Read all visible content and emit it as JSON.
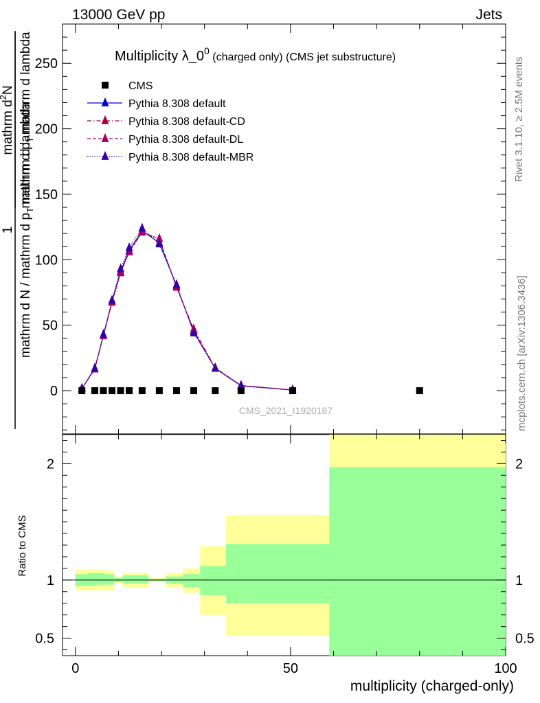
{
  "header": {
    "left": "13000 GeV pp",
    "right": "Jets"
  },
  "side_labels": {
    "rivet": "Rivet 3.1.10, ≥ 2.5M events",
    "mcplots": "mcplots.cern.ch [arXiv:1306.3436]"
  },
  "chart_data": [
    {
      "type": "line",
      "title_main": "Multiplicity λ_0",
      "title_sup": "0",
      "title_tail": " (charged only) (CMS jet substructure)",
      "ylabel": {
        "outer_num": "1",
        "outer_den": "mathrm d N / mathrm d p",
        "outer_den_sub": "T",
        "outer_den_tail": " mathrm d lambda",
        "inner_num": "mathrm d",
        "inner_num_sup": "2",
        "inner_num_tail": "N",
        "inner_den": "mathrm d p",
        "inner_den_sub": "T",
        "inner_den_tail": " mathrm d lambda"
      },
      "watermark": "CMS_2021_I1920187",
      "xlim": [
        -3,
        100
      ],
      "ylim": [
        -33,
        280
      ],
      "yticks": [
        0,
        50,
        100,
        150,
        200,
        250
      ],
      "legend_position": "top-left",
      "series": [
        {
          "name": "CMS",
          "style": "data-square",
          "color": "#000000",
          "x": [
            1.5,
            4.5,
            6.5,
            8.5,
            10.5,
            12.5,
            15.5,
            19.5,
            23.5,
            27.5,
            32.5,
            38.5,
            50.5,
            80
          ],
          "y": [
            0,
            0,
            0,
            0,
            0,
            0,
            0,
            0,
            0,
            0,
            0,
            0,
            0,
            0
          ]
        },
        {
          "name": "Pythia 8.308 default",
          "style": "solid",
          "color": "#0000cc",
          "x": [
            1.5,
            4.5,
            6.5,
            8.5,
            10.5,
            12.5,
            15.5,
            19.5,
            23.5,
            27.5,
            32.5,
            38.5,
            50.5
          ],
          "y": [
            1.5,
            17,
            42,
            68,
            91,
            107,
            122,
            113,
            80,
            45,
            17,
            3.8,
            0.5
          ]
        },
        {
          "name": "Pythia 8.308 default-CD",
          "style": "dashdot",
          "color": "#aa0033",
          "x": [
            1.5,
            4.5,
            6.5,
            8.5,
            10.5,
            12.5,
            15.5,
            19.5,
            23.5,
            27.5,
            32.5,
            38.5,
            50.5
          ],
          "y": [
            1.5,
            16.5,
            42,
            67.5,
            90,
            106,
            121,
            116,
            79,
            47,
            17.5,
            4,
            0.5
          ]
        },
        {
          "name": "Pythia 8.308 default-DL",
          "style": "dashed",
          "color": "#aa0066",
          "x": [
            1.5,
            4.5,
            6.5,
            8.5,
            10.5,
            12.5,
            15.5,
            19.5,
            23.5,
            27.5,
            32.5,
            38.5,
            50.5
          ],
          "y": [
            1.5,
            16.5,
            42,
            67.5,
            90,
            106,
            121,
            116,
            79,
            46,
            17,
            4,
            0.5
          ]
        },
        {
          "name": "Pythia 8.308 default-MBR",
          "style": "dotted",
          "color": "#3300aa",
          "x": [
            1.5,
            4.5,
            6.5,
            8.5,
            10.5,
            12.5,
            15.5,
            19.5,
            23.5,
            27.5,
            32.5,
            38.5,
            50.5
          ],
          "y": [
            1.5,
            17,
            43,
            69,
            93,
            109,
            124,
            112,
            81,
            44,
            17,
            3.5,
            0.4
          ]
        }
      ]
    },
    {
      "type": "area",
      "ylabel": "Ratio to CMS",
      "xlabel": "multiplicity (charged-only)",
      "xlim": [
        -3,
        100
      ],
      "ylim": [
        0.35,
        2.25
      ],
      "yticks": [
        0.5,
        1,
        2
      ],
      "xticks": [
        0,
        50,
        100
      ],
      "reference_line": 1,
      "bins": [
        {
          "x0": 0,
          "x1": 3,
          "inner": [
            0.95,
            1.05
          ],
          "outer": [
            0.91,
            1.09
          ]
        },
        {
          "x0": 3,
          "x1": 5,
          "inner": [
            0.95,
            1.06
          ],
          "outer": [
            0.91,
            1.09
          ]
        },
        {
          "x0": 5,
          "x1": 7,
          "inner": [
            0.96,
            1.06
          ],
          "outer": [
            0.91,
            1.09
          ]
        },
        {
          "x0": 7,
          "x1": 9,
          "inner": [
            0.96,
            1.05
          ],
          "outer": [
            0.91,
            1.08
          ]
        },
        {
          "x0": 9,
          "x1": 11,
          "inner": [
            0.98,
            1.02
          ],
          "outer": [
            0.97,
            1.03
          ]
        },
        {
          "x0": 11,
          "x1": 14,
          "inner": [
            0.97,
            1.04
          ],
          "outer": [
            0.94,
            1.06
          ]
        },
        {
          "x0": 14,
          "x1": 17,
          "inner": [
            0.97,
            1.04
          ],
          "outer": [
            0.94,
            1.06
          ]
        },
        {
          "x0": 17,
          "x1": 21,
          "inner": [
            0.99,
            1.01
          ],
          "outer": [
            0.98,
            1.02
          ]
        },
        {
          "x0": 21,
          "x1": 25,
          "inner": [
            0.97,
            1.03
          ],
          "outer": [
            0.94,
            1.06
          ]
        },
        {
          "x0": 25,
          "x1": 29,
          "inner": [
            0.94,
            1.05
          ],
          "outer": [
            0.89,
            1.1
          ]
        },
        {
          "x0": 29,
          "x1": 35,
          "inner": [
            0.87,
            1.12
          ],
          "outer": [
            0.7,
            1.29
          ]
        },
        {
          "x0": 35,
          "x1": 59,
          "inner": [
            0.8,
            1.31
          ],
          "outer": [
            0.52,
            1.56
          ]
        },
        {
          "x0": 59,
          "x1": 100,
          "inner": [
            0.35,
            1.97
          ],
          "outer": [
            0.35,
            2.25
          ]
        }
      ],
      "colors": {
        "outer_band": "#ffff99",
        "inner_band": "#99ff99"
      }
    }
  ]
}
